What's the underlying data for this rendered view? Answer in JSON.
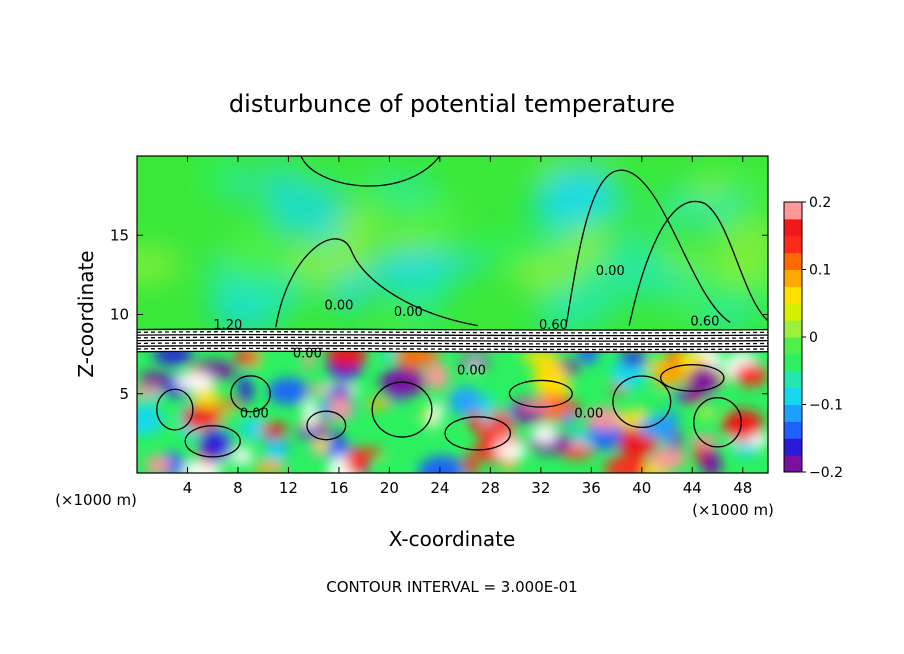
{
  "chart_data": {
    "type": "heatmap",
    "title": "disturbunce of potential temperature",
    "xlabel": "X-coordinate",
    "ylabel": "Z-coordinate",
    "x_unit_left": "(×1000 m)",
    "x_unit_right": "(×1000 m)",
    "xlim": [
      0,
      50
    ],
    "ylim": [
      0,
      20
    ],
    "x_ticks": [
      4,
      8,
      12,
      16,
      20,
      24,
      28,
      32,
      36,
      40,
      44,
      48
    ],
    "y_ticks": [
      5,
      10,
      15
    ],
    "colorbar": {
      "range": [
        -0.2,
        0.2
      ],
      "tick_labels": [
        "0.2",
        "0.1",
        "0",
        "−0.1",
        "−0.2"
      ],
      "tick_values": [
        0.2,
        0.1,
        0,
        -0.1,
        -0.2
      ],
      "colors": [
        "#7b0fa0",
        "#2b1ad8",
        "#2060ff",
        "#1fa0ff",
        "#15d8f0",
        "#22e8b0",
        "#2cf060",
        "#4ff04a",
        "#9af03a",
        "#d8f000",
        "#ffe000",
        "#ffa800",
        "#ff6a00",
        "#ff2a1a",
        "#f01818",
        "#ff9898"
      ]
    },
    "contour_labels": [
      {
        "text": "0.00",
        "x": 16,
        "y": 10.3
      },
      {
        "text": "0.00",
        "x": 21.5,
        "y": 9.9
      },
      {
        "text": "0.00",
        "x": 37.5,
        "y": 12.5
      },
      {
        "text": "0.00",
        "x": 9.3,
        "y": 3.5
      },
      {
        "text": "0.00",
        "x": 35.8,
        "y": 3.5
      },
      {
        "text": "0.00",
        "x": 13.5,
        "y": 7.3
      },
      {
        "text": "0.00",
        "x": 26.5,
        "y": 6.2
      },
      {
        "text": "1.20",
        "x": 7.2,
        "y": 9.1
      },
      {
        "text": "0.60",
        "x": 33,
        "y": 9.1
      },
      {
        "text": "0.60",
        "x": 45,
        "y": 9.3
      }
    ],
    "footer": "CONTOUR INTERVAL = 3.000E-01"
  }
}
